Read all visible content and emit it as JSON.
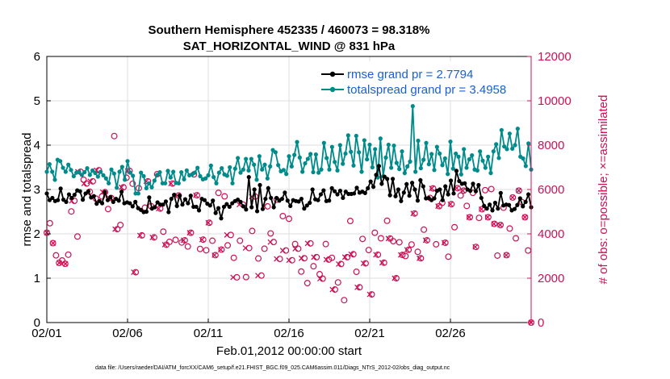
{
  "chart_data": {
    "type": "line",
    "title": "Southern Hemisphere 452335 / 460073 = 98.318%",
    "subtitle": "SAT_HORIZONTAL_WIND @ 831 hPa",
    "xlabel": "Feb.01,2012 00:00:00 start",
    "ylabel": "rmse and totalspread",
    "y2label": "# of obs: o=possible; ×=assimilated",
    "footnote": "data file: /Users/raeder/DAI/ATM_forcXX/CAM6_setup/f.e21.FHIST_BGC.f09_025.CAM6assim.011/Diags_NTrS_2012-02/obs_diag_output.nc",
    "xlim": [
      0,
      30
    ],
    "ylim": [
      0,
      6
    ],
    "y2lim": [
      0,
      12000
    ],
    "xticks": [
      0,
      5,
      10,
      15,
      20,
      25
    ],
    "xticklabels": [
      "02/01",
      "02/06",
      "02/11",
      "02/16",
      "02/21",
      "02/26"
    ],
    "yticks": [
      0,
      1,
      2,
      3,
      4,
      5,
      6
    ],
    "y2ticks": [
      0,
      2000,
      4000,
      6000,
      8000,
      10000,
      12000
    ],
    "grid": true,
    "legend_position": "top-right",
    "colors": {
      "rmse": "#000000",
      "spread": "#008b8b",
      "obs": "#cc1155",
      "axis_right": "#cc1155",
      "legend_text": "#1a5fd6"
    },
    "series": [
      {
        "name": "rmse grand pr = 2.7794",
        "values": [
          2.91,
          2.76,
          2.81,
          2.74,
          2.76,
          3.02,
          2.77,
          2.72,
          2.89,
          2.81,
          2.88,
          2.98,
          2.96,
          2.77,
          2.91,
          2.96,
          2.82,
          2.85,
          2.68,
          2.74,
          2.69,
          2.94,
          2.76,
          2.83,
          2.72,
          2.79,
          2.75,
          2.95,
          2.69,
          2.71,
          2.69,
          2.62,
          2.72,
          2.58,
          2.54,
          2.49,
          2.5,
          2.82,
          2.57,
          2.6,
          2.71,
          2.66,
          2.66,
          2.73,
          2.49,
          2.79,
          2.88,
          2.63,
          2.86,
          2.66,
          2.78,
          2.69,
          2.86,
          2.61,
          2.61,
          2.53,
          2.79,
          2.76,
          2.68,
          2.64,
          2.75,
          2.47,
          2.58,
          2.35,
          2.61,
          2.67,
          2.61,
          2.69,
          2.74,
          2.77,
          2.72,
          2.62,
          2.55,
          3.28,
          2.6,
          3.0,
          2.51,
          3.1,
          2.56,
          2.79,
          3.03,
          2.81,
          2.6,
          2.81,
          2.75,
          2.79,
          2.93,
          2.75,
          2.63,
          2.76,
          2.74,
          2.73,
          2.79,
          2.57,
          2.64,
          2.7,
          3.0,
          2.78,
          2.76,
          2.89,
          2.98,
          2.74,
          2.75,
          3.03,
          2.96,
          2.89,
          2.97,
          2.81,
          2.95,
          2.9,
          2.9,
          2.91,
          3.04,
          2.93,
          2.95,
          2.92,
          3.03,
          3.18,
          3.06,
          3.33,
          3.53,
          3.13,
          3.29,
          3.24,
          2.87,
          3.24,
          2.85,
          3.0,
          2.74,
          2.93,
          3.12,
          2.86,
          3.15,
          3.0,
          2.75,
          3.21,
          3.07,
          2.8,
          2.81,
          2.76,
          2.8,
          2.97,
          3.0,
          2.76,
          3.07,
          2.89,
          3.2,
          2.91,
          3.42,
          3.19,
          3.13,
          3.14,
          3.0,
          2.97,
          3.13,
          2.96,
          3.1,
          2.81,
          2.63,
          2.57,
          2.66,
          2.53,
          2.7,
          2.57,
          2.92,
          2.64,
          2.66,
          2.65,
          2.53,
          2.56,
          2.65,
          2.8,
          2.62,
          2.72,
          2.89,
          2.6
        ]
      },
      {
        "name": "totalspread grand pr = 3.4958",
        "values": [
          3.4,
          3.57,
          3.4,
          3.22,
          3.67,
          3.64,
          3.49,
          3.4,
          3.56,
          3.44,
          3.3,
          3.38,
          3.4,
          3.33,
          3.39,
          3.48,
          3.33,
          3.43,
          3.37,
          3.29,
          3.4,
          3.32,
          3.25,
          3.14,
          3.45,
          3.36,
          3.04,
          3.4,
          3.51,
          3.22,
          3.64,
          3.38,
          3.31,
          2.91,
          2.91,
          3.38,
          3.3,
          3.03,
          3.14,
          3.05,
          3.2,
          3.33,
          3.39,
          3.14,
          3.14,
          3.42,
          3.27,
          3.4,
          3.15,
          3.14,
          3.39,
          3.23,
          3.43,
          3.32,
          3.34,
          3.38,
          3.49,
          3.3,
          3.23,
          3.25,
          3.32,
          3.54,
          3.28,
          3.14,
          3.38,
          3.48,
          3.34,
          3.31,
          3.5,
          3.14,
          3.47,
          3.71,
          3.38,
          3.45,
          3.69,
          3.43,
          3.69,
          3.56,
          3.22,
          3.75,
          3.45,
          3.56,
          3.25,
          3.52,
          3.89,
          3.84,
          3.55,
          3.41,
          3.44,
          3.35,
          3.75,
          3.52,
          3.78,
          4.07,
          3.72,
          3.4,
          3.59,
          3.69,
          3.8,
          3.39,
          3.79,
          3.38,
          3.45,
          4.05,
          3.71,
          3.45,
          3.96,
          3.62,
          3.43,
          4.0,
          3.58,
          3.81,
          4.22,
          3.85,
          3.54,
          4.21,
          3.84,
          3.4,
          4.11,
          3.68,
          4.01,
          3.5,
          3.91,
          3.27,
          4.15,
          3.3,
          3.72,
          4.01,
          3.49,
          3.99,
          3.6,
          3.46,
          3.86,
          3.37,
          3.52,
          3.63,
          4.88,
          3.4,
          4.1,
          3.48,
          3.67,
          4.05,
          3.57,
          3.8,
          3.44,
          3.96,
          3.81,
          3.55,
          3.7,
          3.35,
          4.08,
          3.47,
          3.81,
          3.74,
          3.34,
          3.91,
          3.49,
          3.68,
          3.77,
          3.45,
          3.43,
          3.86,
          3.65,
          3.49,
          3.74,
          3.37,
          3.86,
          4.02,
          3.71,
          4.34,
          3.97,
          3.91,
          4.26,
          3.92,
          4.0,
          4.37,
          3.74,
          3.7,
          3.53,
          4.04,
          3.45
        ]
      },
      {
        "name": "# of obs",
        "axis": "right",
        "values": [
          4050,
          4480,
          3580,
          3030,
          2690,
          2800,
          2650,
          3060,
          5010,
          5490,
          3880,
          6800,
          6440,
          6270,
          5900,
          6370,
          5590,
          6870,
          5690,
          5880,
          5120,
          5620,
          8410,
          4210,
          4400,
          6100,
          6530,
          6840,
          6260,
          2270,
          6060,
          3930,
          5180,
          6370,
          5250,
          3840,
          6690,
          5140,
          4100,
          3510,
          3640,
          6270,
          3730,
          5730,
          3610,
          3710,
          3430,
          4050,
          6680,
          5740,
          3320,
          3740,
          3260,
          4500,
          3690,
          3040,
          5850,
          3290,
          5690,
          3480,
          3950,
          2920,
          2040,
          3690,
          5320,
          2050,
          3360,
          4130,
          5680,
          2890,
          2120,
          3330,
          5240,
          4020,
          3630,
          5540,
          2870,
          4800,
          3250,
          4680,
          2810,
          3540,
          3330,
          2300,
          2900,
          1780,
          3570,
          2540,
          2950,
          2180,
          1980,
          3540,
          2840,
          2920,
          1490,
          1810,
          2640,
          1010,
          2950,
          4580,
          3080,
          2290,
          1590,
          3770,
          2670,
          3270,
          1270,
          4050,
          3060,
          3800,
          2700,
          4590,
          3790,
          3670,
          2000,
          3620,
          3050,
          3000,
          3280,
          3520,
          4920,
          3190,
          2900,
          4190,
          3710,
          5620,
          6050,
          3530,
          5250,
          5400,
          3600,
          2970,
          5340,
          4300,
          6060,
          5730,
          5950,
          5260,
          4750,
          5850,
          3410,
          4720,
          5110,
          5970,
          4750,
          6020,
          4450,
          3020,
          4400,
          5180,
          3040,
          4240,
          5640,
          3800,
          5950,
          5430,
          4750,
          3250,
          0
        ]
      }
    ],
    "assimilated": [
      4050,
      3580,
      2690,
      2650,
      5490,
      6800,
      6270,
      6370,
      6870,
      5880,
      5620,
      4210,
      6100,
      6840,
      2270,
      3930,
      6370,
      3840,
      5140,
      3510,
      6270,
      5730,
      3710,
      4050,
      5740,
      3740,
      4500,
      3040,
      3290,
      3950,
      2040,
      5320,
      3360,
      5680,
      2120,
      5240,
      3630,
      2870,
      3250,
      2810,
      3330,
      2900,
      3570,
      2950,
      1980,
      2840,
      1490,
      2640,
      2950,
      3080,
      1590,
      2670,
      1270,
      3060,
      2700,
      3790,
      2000,
      3050,
      3280,
      4920,
      2900,
      3710,
      6050,
      5250,
      3600,
      5340,
      6060,
      5950,
      4750,
      3410,
      5110,
      4750,
      4450,
      4400,
      3040,
      5640,
      5950,
      4750,
      0
    ]
  }
}
